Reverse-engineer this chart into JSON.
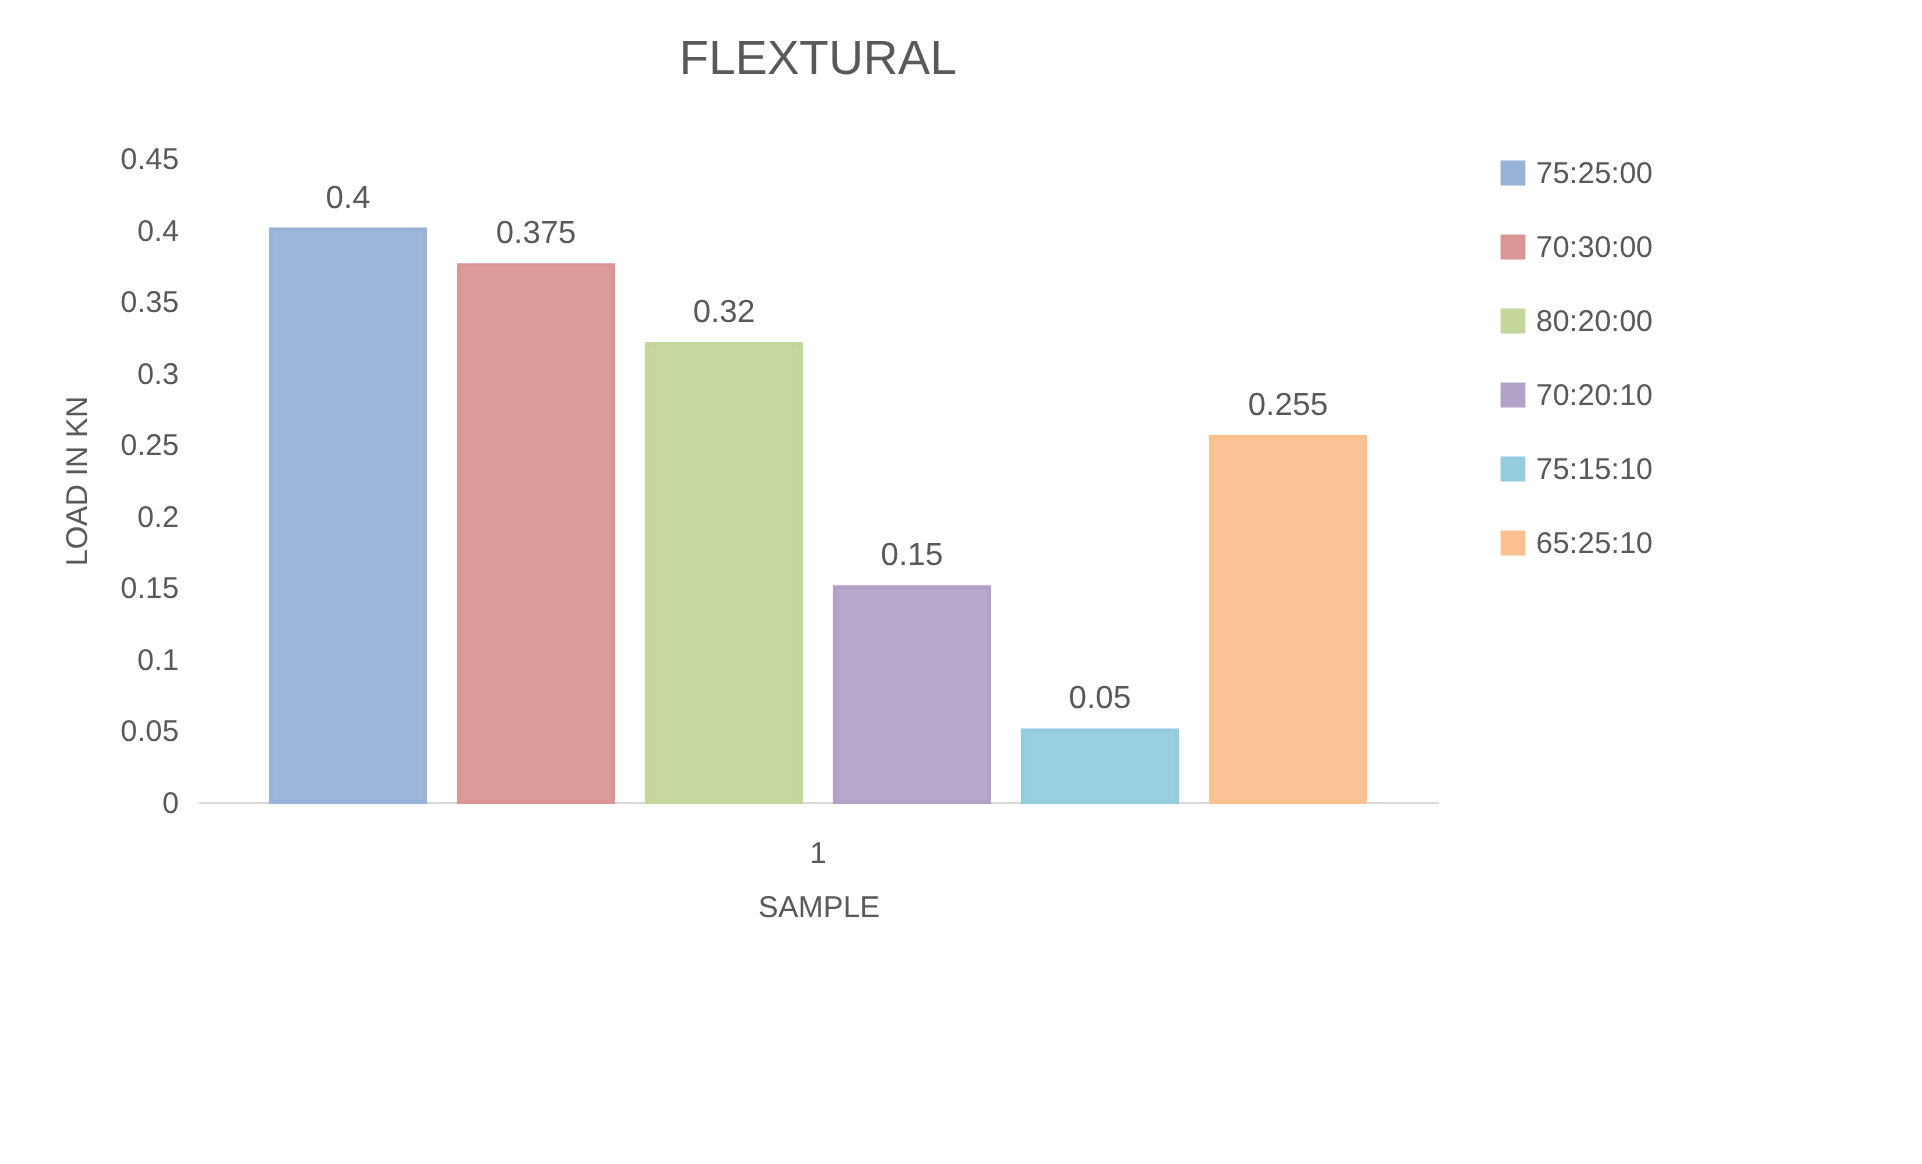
{
  "chart_data": {
    "type": "bar",
    "title": "FLEXTURAL",
    "xlabel": "SAMPLE",
    "ylabel": "LOAD IN  KN",
    "categories": [
      "1"
    ],
    "series": [
      {
        "name": "75:25:00",
        "color": "#98b2d8",
        "values": [
          0.4
        ]
      },
      {
        "name": "70:30:00",
        "color": "#d99694",
        "values": [
          0.375
        ]
      },
      {
        "name": "80:20:00",
        "color": "#c3d69b",
        "values": [
          0.32
        ]
      },
      {
        "name": "70:20:10",
        "color": "#b3a2c7",
        "values": [
          0.15
        ]
      },
      {
        "name": "75:15:10",
        "color": "#93cddd",
        "values": [
          0.05
        ]
      },
      {
        "name": "65:25:10",
        "color": "#fac090",
        "values": [
          0.255
        ]
      }
    ],
    "ylim": [
      0,
      0.45
    ],
    "yticks": [
      0,
      0.05,
      0.1,
      0.15,
      0.2,
      0.25,
      0.3,
      0.35,
      0.4,
      0.45
    ],
    "grid": false,
    "legend": "right",
    "data_labels": true
  }
}
